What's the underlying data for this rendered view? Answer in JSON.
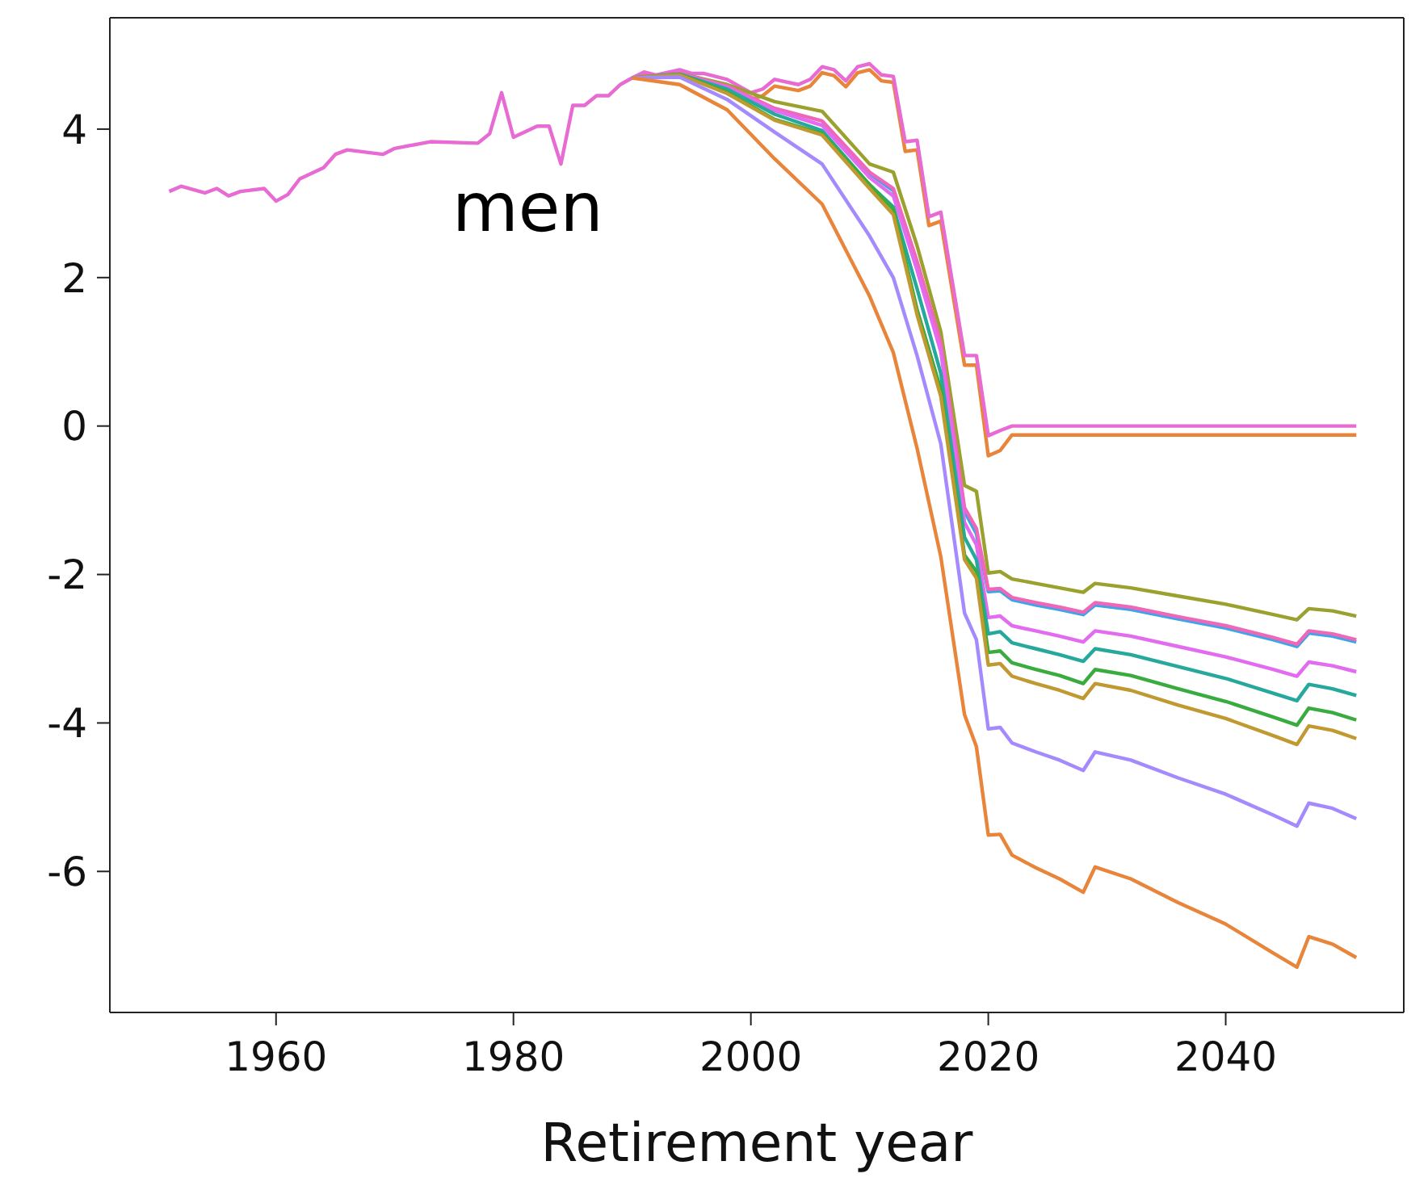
{
  "chart_data": {
    "type": "line",
    "xlabel": "Retirement year",
    "annotations": [
      "men"
    ],
    "xlim": [
      1946,
      2055
    ],
    "xticks": [
      1960,
      1980,
      2000,
      2020,
      2040
    ],
    "ylim": [
      -7.9,
      5.5
    ],
    "yticks": [
      -6,
      -4,
      -2,
      0,
      2,
      4
    ],
    "grid": false,
    "marker": "none",
    "line_style": "solid",
    "series": [
      {
        "color": "#e8853a",
        "x": [
          1990,
          1991,
          1992,
          1994,
          1995,
          1996,
          1998,
          2000,
          2001,
          2002,
          2004,
          2005,
          2006,
          2007,
          2008,
          2009,
          2010,
          2011,
          2012,
          2013,
          2014,
          2015,
          2016,
          2018,
          2019,
          2020,
          2021,
          2022,
          2051
        ],
        "values": [
          4.69,
          4.75,
          4.7,
          4.75,
          4.68,
          4.65,
          4.57,
          4.4,
          4.45,
          4.58,
          4.52,
          4.58,
          4.76,
          4.72,
          4.57,
          4.76,
          4.8,
          4.65,
          4.63,
          3.7,
          3.72,
          2.7,
          2.76,
          0.82,
          0.82,
          -0.4,
          -0.33,
          -0.12,
          -0.12
        ]
      },
      {
        "color": "#e76bd3",
        "x": [
          1951,
          1952,
          1954,
          1955,
          1956,
          1957,
          1959,
          1960,
          1961,
          1962,
          1964,
          1965,
          1966,
          1969,
          1970,
          1973,
          1977,
          1978,
          1979,
          1980,
          1982,
          1983,
          1984,
          1985,
          1986,
          1987,
          1988,
          1989,
          1990,
          1991,
          1992,
          1994,
          1995,
          1996,
          1998,
          2000,
          2001,
          2002,
          2004,
          2005,
          2006,
          2007,
          2008,
          2009,
          2010,
          2011,
          2012,
          2013,
          2014,
          2015,
          2016,
          2018,
          2019,
          2020,
          2021,
          2022,
          2051
        ],
        "values": [
          3.16,
          3.23,
          3.14,
          3.2,
          3.1,
          3.16,
          3.2,
          3.03,
          3.12,
          3.33,
          3.48,
          3.66,
          3.72,
          3.66,
          3.74,
          3.83,
          3.81,
          3.94,
          4.49,
          3.89,
          4.04,
          4.04,
          3.53,
          4.32,
          4.32,
          4.45,
          4.45,
          4.6,
          4.69,
          4.77,
          4.73,
          4.8,
          4.75,
          4.75,
          4.67,
          4.49,
          4.54,
          4.67,
          4.6,
          4.67,
          4.84,
          4.8,
          4.65,
          4.84,
          4.88,
          4.73,
          4.71,
          3.83,
          3.85,
          2.82,
          2.88,
          0.95,
          0.95,
          -0.13,
          -0.06,
          0,
          0
        ]
      },
      {
        "color": "#9aa12e",
        "x": [
          1990,
          1994,
          1998,
          2002,
          2006,
          2010,
          2012,
          2014,
          2016,
          2018,
          2019,
          2020,
          2021,
          2022,
          2024,
          2026,
          2028,
          2029,
          2032,
          2036,
          2040,
          2044,
          2046,
          2047,
          2049,
          2051
        ],
        "values": [
          4.69,
          4.75,
          4.6,
          4.37,
          4.24,
          3.53,
          3.42,
          2.43,
          1.27,
          -0.8,
          -0.88,
          -1.98,
          -1.96,
          -2.06,
          -2.12,
          -2.18,
          -2.24,
          -2.12,
          -2.18,
          -2.29,
          -2.4,
          -2.54,
          -2.61,
          -2.46,
          -2.49,
          -2.56
        ]
      },
      {
        "color": "#3aa5e8",
        "x": [
          2006,
          2010,
          2012,
          2014,
          2016,
          2018,
          2019,
          2020,
          2021,
          2022,
          2024,
          2026,
          2028,
          2029,
          2032,
          2036,
          2040,
          2044,
          2046,
          2047,
          2049,
          2051
        ],
        "values": [
          4.09,
          3.4,
          3.17,
          2.18,
          1.08,
          -1.15,
          -1.45,
          -2.23,
          -2.22,
          -2.34,
          -2.41,
          -2.47,
          -2.54,
          -2.41,
          -2.47,
          -2.6,
          -2.72,
          -2.88,
          -2.97,
          -2.79,
          -2.83,
          -2.91
        ]
      },
      {
        "color": "#ef67b8",
        "x": [
          1990,
          1994,
          1998,
          2002,
          2006,
          2010,
          2012,
          2014,
          2016,
          2018,
          2019,
          2020,
          2021,
          2022,
          2024,
          2026,
          2028,
          2029,
          2032,
          2036,
          2040,
          2044,
          2046,
          2047,
          2049,
          2051
        ],
        "values": [
          4.69,
          4.75,
          4.58,
          4.28,
          4.11,
          3.42,
          3.2,
          2.22,
          1.12,
          -1.1,
          -1.38,
          -2.2,
          -2.19,
          -2.31,
          -2.38,
          -2.44,
          -2.51,
          -2.38,
          -2.44,
          -2.57,
          -2.69,
          -2.85,
          -2.94,
          -2.76,
          -2.8,
          -2.88
        ]
      },
      {
        "color": "#e26bf0",
        "x": [
          1990,
          1994,
          1998,
          2002,
          2006,
          2010,
          2012,
          2014,
          2016,
          2018,
          2019,
          2020,
          2021,
          2022,
          2024,
          2026,
          2028,
          2029,
          2032,
          2036,
          2040,
          2044,
          2046,
          2047,
          2049,
          2051
        ],
        "values": [
          4.69,
          4.75,
          4.56,
          4.25,
          4.05,
          3.35,
          3.1,
          2.1,
          1.0,
          -1.3,
          -1.6,
          -2.58,
          -2.56,
          -2.69,
          -2.76,
          -2.83,
          -2.91,
          -2.76,
          -2.83,
          -2.97,
          -3.11,
          -3.28,
          -3.37,
          -3.18,
          -3.23,
          -3.31
        ]
      },
      {
        "color": "#27a89c",
        "x": [
          1990,
          1994,
          1998,
          2002,
          2006,
          2010,
          2012,
          2014,
          2016,
          2018,
          2019,
          2020,
          2021,
          2022,
          2024,
          2026,
          2028,
          2029,
          2032,
          2036,
          2040,
          2044,
          2046,
          2047,
          2049,
          2051
        ],
        "values": [
          4.69,
          4.74,
          4.54,
          4.2,
          3.98,
          3.25,
          2.95,
          1.85,
          0.71,
          -1.5,
          -1.8,
          -2.8,
          -2.77,
          -2.92,
          -3.0,
          -3.08,
          -3.17,
          -3.0,
          -3.08,
          -3.24,
          -3.4,
          -3.6,
          -3.7,
          -3.48,
          -3.54,
          -3.63
        ]
      },
      {
        "color": "#3aab3e",
        "x": [
          1990,
          1994,
          1998,
          2002,
          2006,
          2010,
          2012,
          2014,
          2016,
          2018,
          2019,
          2020,
          2021,
          2022,
          2024,
          2026,
          2028,
          2029,
          2032,
          2036,
          2040,
          2044,
          2046,
          2047,
          2049,
          2051
        ],
        "values": [
          4.69,
          4.74,
          4.5,
          4.13,
          3.94,
          3.25,
          2.92,
          1.57,
          0.49,
          -1.74,
          -1.96,
          -3.05,
          -3.03,
          -3.19,
          -3.28,
          -3.36,
          -3.47,
          -3.28,
          -3.36,
          -3.54,
          -3.71,
          -3.92,
          -4.03,
          -3.8,
          -3.86,
          -3.96
        ]
      },
      {
        "color": "#c09a30",
        "x": [
          1990,
          1994,
          1998,
          2002,
          2006,
          2010,
          2012,
          2014,
          2016,
          2018,
          2019,
          2020,
          2021,
          2022,
          2024,
          2026,
          2028,
          2029,
          2032,
          2036,
          2040,
          2044,
          2046,
          2047,
          2049,
          2051
        ],
        "values": [
          4.69,
          4.73,
          4.48,
          4.12,
          3.92,
          3.2,
          2.85,
          1.5,
          0.4,
          -1.8,
          -2.05,
          -3.22,
          -3.2,
          -3.37,
          -3.47,
          -3.56,
          -3.67,
          -3.47,
          -3.56,
          -3.76,
          -3.94,
          -4.17,
          -4.29,
          -4.04,
          -4.1,
          -4.21
        ]
      },
      {
        "color": "#a58afe",
        "x": [
          1990,
          1994,
          1998,
          2002,
          2006,
          2010,
          2012,
          2014,
          2016,
          2018,
          2019,
          2020,
          2021,
          2022,
          2024,
          2026,
          2028,
          2029,
          2032,
          2036,
          2040,
          2044,
          2046,
          2047,
          2049,
          2051
        ],
        "values": [
          4.69,
          4.7,
          4.4,
          3.96,
          3.53,
          2.56,
          2.0,
          0.95,
          -0.24,
          -2.52,
          -2.88,
          -4.08,
          -4.06,
          -4.27,
          -4.39,
          -4.5,
          -4.64,
          -4.39,
          -4.5,
          -4.74,
          -4.96,
          -5.24,
          -5.39,
          -5.08,
          -5.15,
          -5.29
        ]
      },
      {
        "color": "#e8853a",
        "x": [
          1990,
          1994,
          1998,
          2002,
          2006,
          2010,
          2012,
          2014,
          2016,
          2018,
          2019,
          2020,
          2021,
          2022,
          2024,
          2026,
          2028,
          2029,
          2032,
          2036,
          2040,
          2044,
          2046,
          2047,
          2049,
          2051
        ],
        "values": [
          4.69,
          4.6,
          4.26,
          3.6,
          2.99,
          1.75,
          0.99,
          -0.3,
          -1.76,
          -3.89,
          -4.32,
          -5.51,
          -5.5,
          -5.78,
          -5.95,
          -6.1,
          -6.28,
          -5.94,
          -6.1,
          -6.42,
          -6.71,
          -7.1,
          -7.29,
          -6.88,
          -6.98,
          -7.16
        ]
      }
    ]
  }
}
